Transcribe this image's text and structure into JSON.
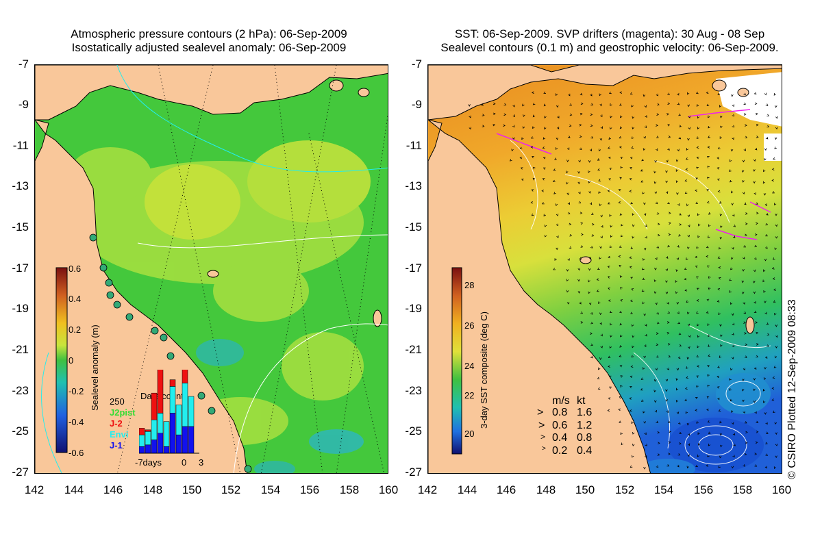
{
  "left_panel": {
    "title_line1": "Atmospheric pressure contours (2 hPa): 06-Sep-2009",
    "title_line2": "Isostatically adjusted sealevel anomaly: 06-Sep-2009",
    "colorbar": {
      "label": "Sealevel anomaly (m)",
      "ticks": [
        "0.6",
        "0.4",
        "0.2",
        "0",
        "-0.2",
        "-0.4",
        "-0.6"
      ]
    },
    "data_count": {
      "title": "Data count",
      "max_label": "250",
      "legend": [
        {
          "name": "J2pist",
          "color": "#33dd33"
        },
        {
          "name": "J-2",
          "color": "#ee1111"
        },
        {
          "name": "Envi",
          "color": "#22eeee"
        },
        {
          "name": "J-1",
          "color": "#1111ee"
        }
      ],
      "x_labels": [
        "-7days",
        "0",
        "3"
      ],
      "bars": [
        {
          "j1": 20,
          "envi": 35,
          "j2": 20
        },
        {
          "j1": 25,
          "envi": 40,
          "j2": 5
        },
        {
          "j1": 40,
          "envi": 60,
          "j2": 80
        },
        {
          "j1": 60,
          "envi": 60,
          "j2": 160
        },
        {
          "j1": 20,
          "envi": 75,
          "j2": 0
        },
        {
          "j1": 120,
          "envi": 80,
          "j2": 20
        },
        {
          "j1": 55,
          "envi": 90,
          "j2": 0
        },
        {
          "j1": 80,
          "envi": 130,
          "j2": 70
        },
        {
          "j1": 80,
          "envi": 90,
          "j2": 0
        },
        {
          "j1": 0,
          "envi": 0,
          "j2": 0
        }
      ]
    }
  },
  "right_panel": {
    "title_line1": "SST: 06-Sep-2009. SVP drifters (magenta): 30 Aug - 08 Sep",
    "title_line2": "Sealevel contours (0.1 m) and geostrophic velocity: 06-Sep-2009.",
    "colorbar": {
      "label": "3-day SST composite (deg C)",
      "ticks": [
        "28",
        "26",
        "24",
        "22",
        "20"
      ]
    },
    "vector_legend": {
      "header_ms": "m/s",
      "header_kt": "kt",
      "rows": [
        {
          "ms": "0.8",
          "kt": "1.6"
        },
        {
          "ms": "0.6",
          "kt": "1.2"
        },
        {
          "ms": "0.4",
          "kt": "0.8"
        },
        {
          "ms": "0.2",
          "kt": "0.4"
        }
      ]
    }
  },
  "axes": {
    "lat_labels": [
      "-7",
      "-9",
      "-11",
      "-13",
      "-15",
      "-17",
      "-19",
      "-21",
      "-23",
      "-25",
      "-27"
    ],
    "lon_labels": [
      "142",
      "144",
      "146",
      "148",
      "150",
      "152",
      "154",
      "156",
      "158",
      "160"
    ],
    "lat_range": [
      -27,
      -7
    ],
    "lon_range": [
      142,
      160
    ]
  },
  "credit": "© CSIRO Plotted 12-Sep-2009 08:33",
  "colors": {
    "land": "#f9c79a",
    "sla_field": "#44c83c",
    "sla_high": "#b8e84a",
    "sst_warm": "#f0a82a",
    "sst_mid": "#e8dc3c",
    "sst_cool": "#40c850",
    "sst_cold": "#2070e0",
    "drifter": "#ee22ee"
  }
}
